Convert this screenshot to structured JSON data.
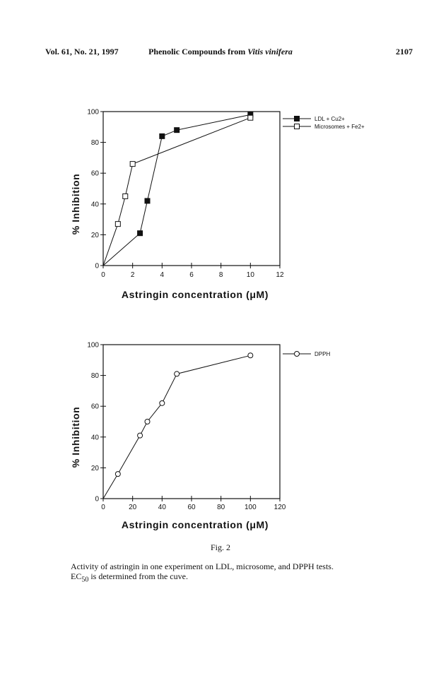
{
  "header": {
    "left": "Vol. 61, No. 21, 1997",
    "center_prefix": "Phenolic Compounds from ",
    "center_italic": "Vitis vinifera",
    "right": "2107"
  },
  "figure": {
    "label": "Fig. 2",
    "caption_line1": "Activity of astringin in one experiment on LDL, microsome, and DPPH tests.",
    "caption_line2_pre": "EC",
    "caption_line2_sub": "50",
    "caption_line2_post": " is determined from the cuve."
  },
  "chart_data": [
    {
      "type": "line",
      "xlabel": "Astringin   concentration   (μM)",
      "ylabel": "% Inhibition",
      "xlim": [
        0,
        12
      ],
      "ylim": [
        0,
        100
      ],
      "xticks": [
        0,
        2,
        4,
        6,
        8,
        10,
        12
      ],
      "yticks": [
        0,
        20,
        40,
        60,
        80,
        100
      ],
      "grid": false,
      "legend_position": "right-outside-top",
      "series": [
        {
          "name": "LDL + Cu2+",
          "marker": "filled-square",
          "x": [
            0,
            2.5,
            3,
            4,
            5,
            10
          ],
          "y": [
            0,
            21,
            42,
            84,
            88,
            98
          ]
        },
        {
          "name": "Microsomes + Fe2+",
          "marker": "open-square",
          "x": [
            0,
            1,
            1.5,
            2,
            10
          ],
          "y": [
            0,
            27,
            45,
            66,
            96
          ]
        }
      ]
    },
    {
      "type": "line",
      "xlabel": "Astringin   concentration   (μM)",
      "ylabel": "% Inhibition",
      "xlim": [
        0,
        120
      ],
      "ylim": [
        0,
        100
      ],
      "xticks": [
        0,
        20,
        40,
        60,
        80,
        100,
        120
      ],
      "yticks": [
        0,
        20,
        40,
        60,
        80,
        100
      ],
      "grid": false,
      "legend_position": "right-outside-top",
      "series": [
        {
          "name": "DPPH",
          "marker": "open-circle",
          "x": [
            0,
            10,
            25,
            30,
            40,
            50,
            100
          ],
          "y": [
            0,
            16,
            41,
            50,
            62,
            81,
            93
          ]
        }
      ]
    }
  ]
}
